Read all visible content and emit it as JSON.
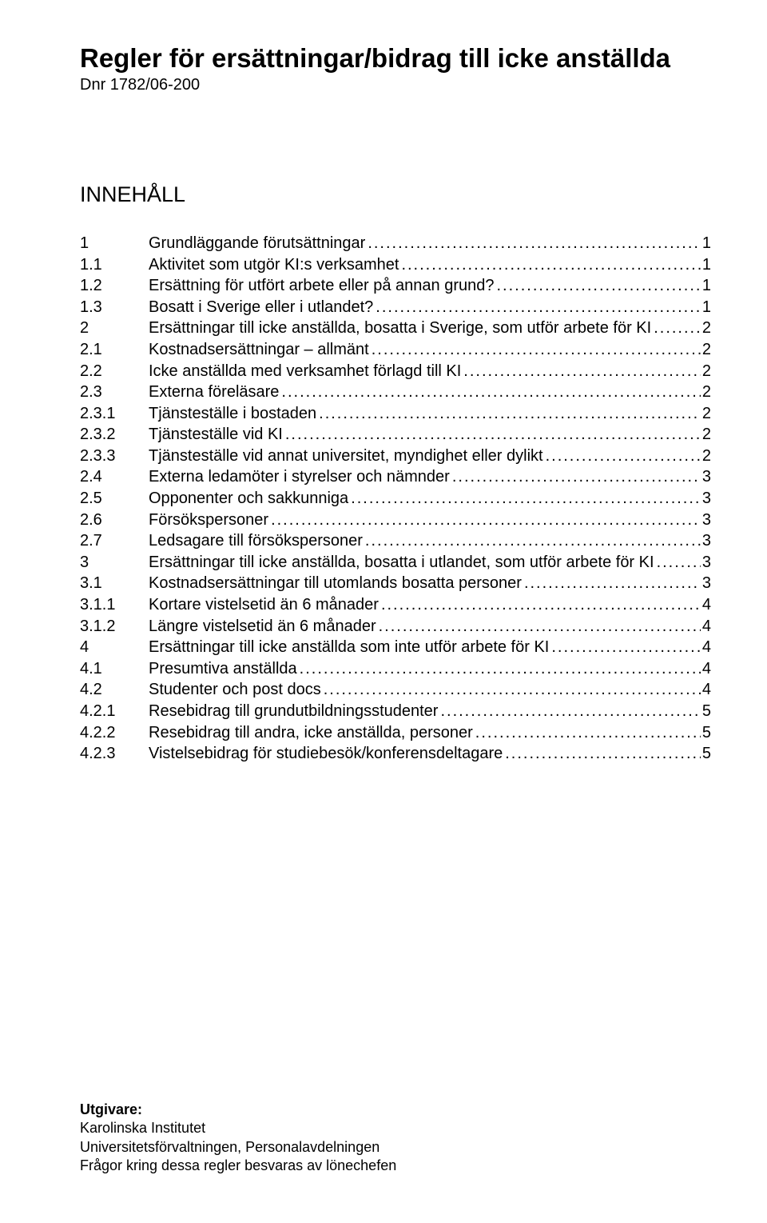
{
  "title": "Regler för ersättningar/bidrag till icke anställda",
  "dnr": "Dnr 1782/06-200",
  "section_heading": "INNEHÅLL",
  "toc": [
    {
      "n": "1",
      "t": "Grundläggande förutsättningar",
      "p": "1"
    },
    {
      "n": "1.1",
      "t": "Aktivitet som utgör KI:s verksamhet",
      "p": "1"
    },
    {
      "n": "1.2",
      "t": "Ersättning för utfört arbete eller på annan grund?",
      "p": "1"
    },
    {
      "n": "1.3",
      "t": "Bosatt i Sverige eller i utlandet?",
      "p": "1"
    },
    {
      "n": "2",
      "t": "Ersättningar till icke anställda, bosatta i Sverige, som utför arbete för KI",
      "p": "2"
    },
    {
      "n": "2.1",
      "t": "Kostnadsersättningar – allmänt",
      "p": "2"
    },
    {
      "n": "2.2",
      "t": "Icke anställda med verksamhet förlagd till KI",
      "p": "2"
    },
    {
      "n": "2.3",
      "t": "Externa föreläsare",
      "p": "2"
    },
    {
      "n": "2.3.1",
      "t": "Tjänsteställe i bostaden",
      "p": "2"
    },
    {
      "n": "2.3.2",
      "t": "Tjänsteställe vid KI",
      "p": "2"
    },
    {
      "n": "2.3.3",
      "t": "Tjänsteställe vid annat universitet, myndighet eller dylikt",
      "p": "2"
    },
    {
      "n": "2.4",
      "t": "Externa ledamöter i styrelser och nämnder",
      "p": "3"
    },
    {
      "n": "2.5",
      "t": "Opponenter och sakkunniga",
      "p": "3"
    },
    {
      "n": "2.6",
      "t": "Försökspersoner",
      "p": "3"
    },
    {
      "n": "2.7",
      "t": "Ledsagare till försökspersoner",
      "p": "3"
    },
    {
      "n": "3",
      "t": "Ersättningar till icke anställda, bosatta i utlandet, som utför arbete för KI",
      "p": "3"
    },
    {
      "n": "3.1",
      "t": "Kostnadsersättningar till utomlands bosatta personer",
      "p": "3"
    },
    {
      "n": "3.1.1",
      "t": "Kortare vistelsetid än 6 månader",
      "p": "4"
    },
    {
      "n": "3.1.2",
      "t": "Längre vistelsetid än 6 månader",
      "p": "4"
    },
    {
      "n": "4",
      "t": "Ersättningar till icke anställda som inte utför arbete för KI",
      "p": "4"
    },
    {
      "n": "4.1",
      "t": "Presumtiva anställda",
      "p": "4"
    },
    {
      "n": "4.2",
      "t": "Studenter och post docs",
      "p": "4"
    },
    {
      "n": "4.2.1",
      "t": "Resebidrag till grundutbildningsstudenter",
      "p": "5"
    },
    {
      "n": "4.2.2",
      "t": "Resebidrag till andra, icke anställda, personer",
      "p": "5"
    },
    {
      "n": "4.2.3",
      "t": "Vistelsebidrag för studiebesök/konferensdeltagare",
      "p": "5"
    }
  ],
  "footer": {
    "publisher_label": "Utgivare:",
    "line1": "Karolinska Institutet",
    "line2": "Universitetsförvaltningen, Personalavdelningen",
    "line3": "Frågor kring dessa regler besvaras av lönechefen"
  }
}
